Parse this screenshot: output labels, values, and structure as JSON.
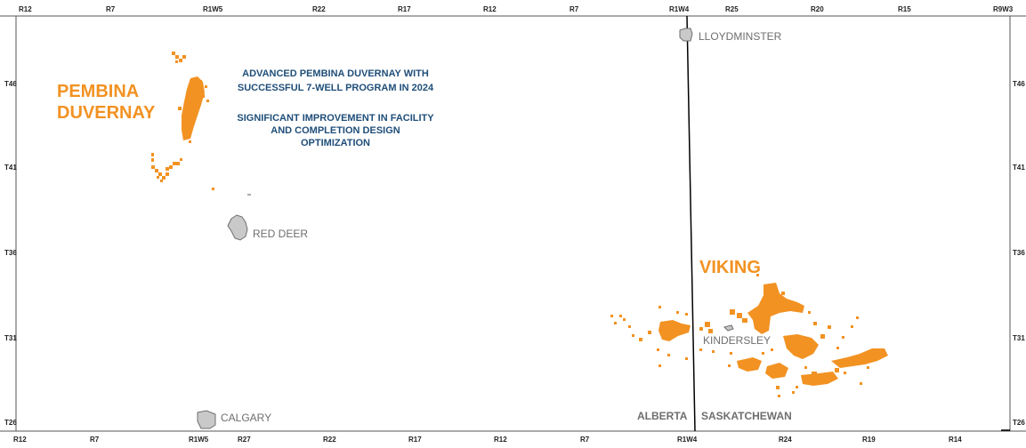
{
  "colors": {
    "play": "#f29222",
    "annotation": "#1f4e79",
    "city_fill": "#c9c9c9",
    "city_stroke": "#6e6e6e",
    "frame": "#555555",
    "border": "#000000"
  },
  "top_ticks": [
    "R12",
    "R7",
    "R1W5",
    "R22",
    "R17",
    "R12",
    "R7",
    "R1W4",
    "R25",
    "R20",
    "R15",
    "R9W3"
  ],
  "bottom_ticks": [
    "R12",
    "R7",
    "R1W5",
    "R27",
    "R22",
    "R17",
    "R12",
    "R7",
    "R1W4",
    "R24",
    "R19",
    "R14"
  ],
  "left_ticks": [
    "T46",
    "T41",
    "T36",
    "T31",
    "T26"
  ],
  "right_ticks": [
    "T46",
    "T41",
    "T36",
    "T31",
    "T26"
  ],
  "plays": {
    "duvernay_line1": "PEMBINA",
    "duvernay_line2": "DUVERNAY",
    "viking": "VIKING"
  },
  "annotation": {
    "line1": "ADVANCED PEMBINA DUVERNAY WITH",
    "line2": "SUCCESSFUL 7-WELL PROGRAM IN 2024",
    "line3": "SIGNIFICANT IMPROVEMENT IN FACILITY",
    "line4": "AND COMPLETION DESIGN",
    "line5": "OPTIMIZATION"
  },
  "cities": {
    "lloydminster": "LLOYDMINSTER",
    "red_deer": "RED DEER",
    "kindersley": "KINDERSLEY",
    "calgary": "CALGARY"
  },
  "provinces": {
    "alberta": "ALBERTA",
    "saskatchewan": "SASKATCHEWAN"
  }
}
